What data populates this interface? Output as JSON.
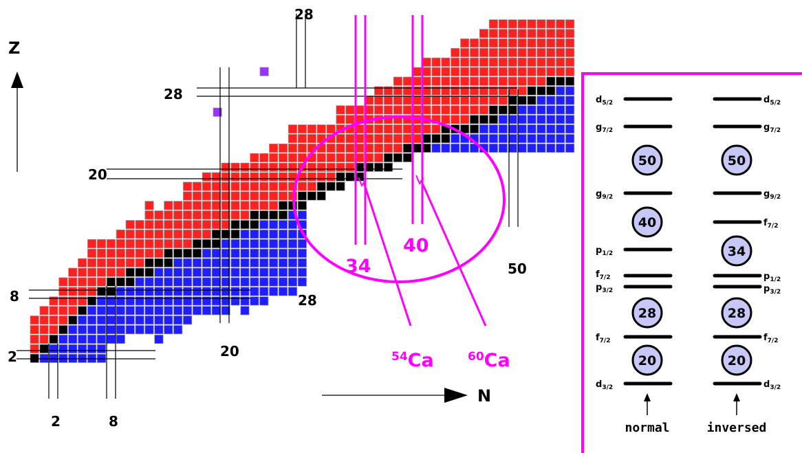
{
  "axes": {
    "z_label": "Z",
    "n_label": "N"
  },
  "proton_magic_labels": [
    "2",
    "8",
    "20",
    "28",
    "28"
  ],
  "neutron_magic_labels": [
    "2",
    "8",
    "20",
    "28",
    "50"
  ],
  "highlight": {
    "n_labels": [
      "34",
      "40"
    ],
    "isotopes": [
      {
        "mass": "54",
        "symbol": "Ca"
      },
      {
        "mass": "60",
        "symbol": "Ca"
      }
    ]
  },
  "colors": {
    "proton_rich": "#ff2020",
    "stable": "#000000",
    "neutron_rich": "#1e1eff",
    "special": "#9933ff",
    "highlight": "#ff00ff",
    "shell_fill": "#c8c8f8"
  },
  "shell_panel": {
    "normal": {
      "caption": "normal",
      "levels": [
        {
          "orb": "d",
          "frac": "5/2"
        },
        {
          "orb": "g",
          "frac": "7/2"
        },
        {
          "orb": "g",
          "frac": "9/2"
        },
        {
          "orb": "p",
          "frac": "1/2"
        },
        {
          "orb": "f",
          "frac": "7/2"
        },
        {
          "orb": "p",
          "frac": "3/2"
        },
        {
          "orb": "f",
          "frac": "7/2"
        },
        {
          "orb": "d",
          "frac": "3/2"
        }
      ],
      "gaps": [
        "50",
        "40",
        "28",
        "20"
      ]
    },
    "inversed": {
      "caption": "inversed",
      "levels": [
        {
          "orb": "d",
          "frac": "5/2"
        },
        {
          "orb": "g",
          "frac": "7/2"
        },
        {
          "orb": "g",
          "frac": "9/2"
        },
        {
          "orb": "f",
          "frac": "7/2"
        },
        {
          "orb": "p",
          "frac": "1/2"
        },
        {
          "orb": "p",
          "frac": "3/2"
        },
        {
          "orb": "f",
          "frac": "7/2"
        },
        {
          "orb": "d",
          "frac": "3/2"
        }
      ],
      "gaps": [
        "50",
        "34",
        "28",
        "20"
      ]
    }
  }
}
